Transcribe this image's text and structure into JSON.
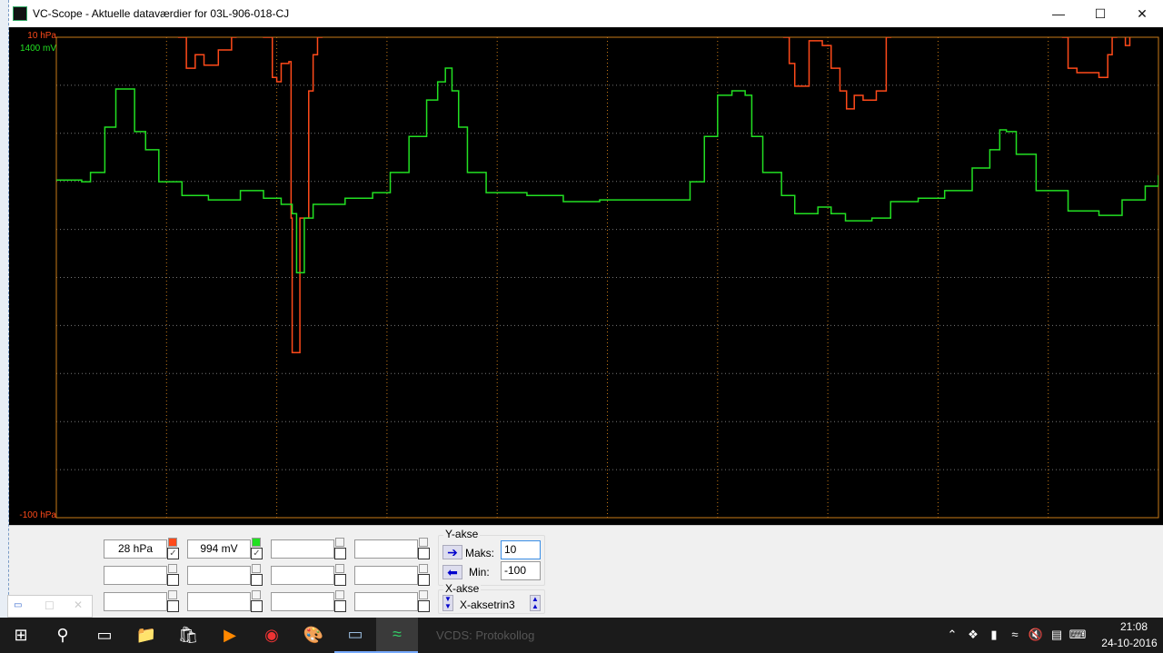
{
  "window": {
    "title": "VC-Scope  - Aktuelle dataværdier for  03L-906-018-CJ",
    "controls": [
      "minimize",
      "maximize",
      "close"
    ]
  },
  "scope": {
    "channels": [
      {
        "unit": "hPa",
        "max_label": "10 hPa",
        "min_label": "-100 hPa",
        "max": 10,
        "min": -100,
        "color": "#ff4a1a",
        "current": "28 hPa",
        "enabled": true
      },
      {
        "unit": "mV",
        "max_label": "1400 mV",
        "max": 1400,
        "min": 0,
        "color": "#22e022",
        "current": "994 mV",
        "enabled": true
      }
    ],
    "grid": {
      "x_divisions": 10,
      "y_divisions": 10,
      "vertical_color": "#c87a18",
      "horizontal_color": "#777777"
    },
    "traces": {
      "mV": [
        [
          0,
          984
        ],
        [
          0.23,
          979
        ],
        [
          0.31,
          1006
        ],
        [
          0.44,
          1138
        ],
        [
          0.54,
          1249
        ],
        [
          0.64,
          1249
        ],
        [
          0.71,
          1125
        ],
        [
          0.81,
          1072
        ],
        [
          0.93,
          979
        ],
        [
          1.14,
          939
        ],
        [
          1.38,
          926
        ],
        [
          1.67,
          953
        ],
        [
          1.88,
          931
        ],
        [
          2.04,
          913
        ],
        [
          2.14,
          886
        ],
        [
          2.18,
          714
        ],
        [
          2.21,
          714
        ],
        [
          2.25,
          873
        ],
        [
          2.33,
          913
        ],
        [
          2.62,
          931
        ],
        [
          2.87,
          947
        ],
        [
          3.03,
          1006
        ],
        [
          3.2,
          1111
        ],
        [
          3.36,
          1217
        ],
        [
          3.46,
          1270
        ],
        [
          3.53,
          1310
        ],
        [
          3.59,
          1244
        ],
        [
          3.65,
          1138
        ],
        [
          3.73,
          1006
        ],
        [
          3.9,
          947
        ],
        [
          4.27,
          939
        ],
        [
          4.6,
          921
        ],
        [
          4.93,
          926
        ],
        [
          5.59,
          926
        ],
        [
          5.75,
          979
        ],
        [
          5.88,
          1111
        ],
        [
          6.0,
          1231
        ],
        [
          6.13,
          1244
        ],
        [
          6.25,
          1231
        ],
        [
          6.31,
          1111
        ],
        [
          6.41,
          1006
        ],
        [
          6.58,
          939
        ],
        [
          6.7,
          886
        ],
        [
          6.91,
          905
        ],
        [
          7.03,
          886
        ],
        [
          7.16,
          865
        ],
        [
          7.4,
          873
        ],
        [
          7.57,
          921
        ],
        [
          7.82,
          931
        ],
        [
          8.06,
          953
        ],
        [
          8.31,
          1019
        ],
        [
          8.47,
          1072
        ],
        [
          8.56,
          1130
        ],
        [
          8.62,
          1125
        ],
        [
          8.71,
          1059
        ],
        [
          8.89,
          953
        ],
        [
          9.18,
          894
        ],
        [
          9.46,
          881
        ],
        [
          9.67,
          926
        ],
        [
          9.88,
          966
        ],
        [
          10,
          998
        ]
      ],
      "hPa": [
        [
          0,
          15
        ],
        [
          1.06,
          15
        ],
        [
          1.11,
          10
        ],
        [
          1.18,
          2.9
        ],
        [
          1.26,
          6.0
        ],
        [
          1.34,
          3.6
        ],
        [
          1.47,
          7.1
        ],
        [
          1.59,
          10
        ],
        [
          1.63,
          15
        ],
        [
          1.84,
          15
        ],
        [
          1.88,
          10
        ],
        [
          1.96,
          0.8
        ],
        [
          2.0,
          -0.2
        ],
        [
          2.04,
          4.0
        ],
        [
          2.11,
          4.4
        ],
        [
          2.13,
          -31.4
        ],
        [
          2.14,
          -62.2
        ],
        [
          2.18,
          -62.2
        ],
        [
          2.21,
          -31.4
        ],
        [
          2.29,
          -2.3
        ],
        [
          2.33,
          6.0
        ],
        [
          2.37,
          10
        ],
        [
          2.41,
          15
        ],
        [
          6.54,
          15
        ],
        [
          6.6,
          10
        ],
        [
          6.65,
          4.0
        ],
        [
          6.7,
          -1.2
        ],
        [
          6.78,
          -1.2
        ],
        [
          6.83,
          9.2
        ],
        [
          6.95,
          8.1
        ],
        [
          7.03,
          2.9
        ],
        [
          7.11,
          -2.3
        ],
        [
          7.17,
          -6.4
        ],
        [
          7.24,
          -3.3
        ],
        [
          7.32,
          -4.4
        ],
        [
          7.44,
          -2.3
        ],
        [
          7.53,
          10
        ],
        [
          7.57,
          15
        ],
        [
          9.09,
          15
        ],
        [
          9.13,
          10
        ],
        [
          9.18,
          2.9
        ],
        [
          9.26,
          1.9
        ],
        [
          9.38,
          1.9
        ],
        [
          9.46,
          0.8
        ],
        [
          9.54,
          6.0
        ],
        [
          9.58,
          10
        ],
        [
          9.62,
          15
        ],
        [
          9.68,
          15
        ],
        [
          9.7,
          8.1
        ],
        [
          9.74,
          15
        ],
        [
          10,
          15
        ]
      ]
    }
  },
  "panel": {
    "rows": [
      [
        "28 hPa",
        "994 mV",
        "",
        ""
      ],
      [
        "",
        "",
        "",
        ""
      ],
      [
        "",
        "",
        "",
        ""
      ]
    ],
    "y_axis": {
      "label": "Y-akse",
      "max_label": "Maks:",
      "max_value": "10",
      "min_label": "Min:",
      "min_value": "-100"
    },
    "x_axis": {
      "label": "X-akse",
      "value": "X-aksetrin3"
    }
  },
  "taskbar": {
    "time": "21:08",
    "date": "24-10-2016",
    "ghost_text": "VCDS: Protokollog"
  }
}
